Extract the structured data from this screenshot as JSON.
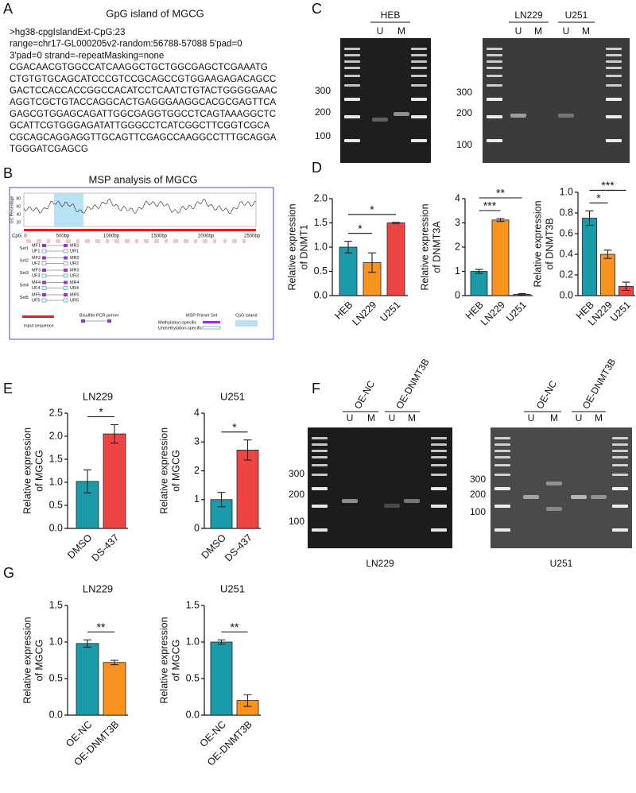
{
  "panel_labels": [
    "A",
    "B",
    "C",
    "D",
    "E",
    "F",
    "G"
  ],
  "sequence": {
    "title": "GpG island of MGCG",
    "lines": [
      ">hg38-cpgIslandExt-CpG:23",
      "range=chr17-GL000205v2-random:56788-57088 5'pad=0",
      "3'pad=0 strand=-repeatMasking=none",
      "CGACAACGTGGCCATCAAGGCTGCTGGCGAGCTCGAAATG",
      "CTGTGTGCAGCATCCCGTCCGCAGCCGTGGAAGAGACAGCC",
      "GACTCCACCACCGGCCACATCCTCAATCTGTACTGGGGGAAC",
      "AGGTCGCTGTACCAGGCACTGAGGGAAGGCACGCGAGTTCA",
      "GAGCGTGGAGCAGATTGGCGAGGTGGCCTCAGTAAAGGCTC",
      "GCATTCGTGGGAGATATTGGGCCTCATCGGCTTCGGTCGCA",
      "CGCAGCAGGAGGTTGCAGTTCGAGCCAAGGCCTTTGCAGGA",
      "TGGGATCGAGCG"
    ]
  },
  "msp": {
    "title": "MSP analysis of MGCG",
    "gc_label": "GC Percentage",
    "gc_ticks": [
      "20",
      "40",
      "60",
      "80"
    ],
    "cpg_label": "CpG",
    "positions": [
      "0",
      "500bp",
      "1000bp",
      "1500bp",
      "2000bp",
      "2500bp"
    ],
    "sets": [
      {
        "name": "Set1",
        "methylated": [
          "MF1",
          "MR1"
        ],
        "unmethylated": [
          "UF1",
          "UR1"
        ]
      },
      {
        "name": "Set2",
        "methylated": [
          "MF2",
          "MR2"
        ],
        "unmethylated": [
          "UF2",
          "UR2"
        ]
      },
      {
        "name": "Set3",
        "methylated": [
          "MF3",
          "MR3"
        ],
        "unmethylated": [
          "UF3",
          "UR3"
        ]
      },
      {
        "name": "Set4",
        "methylated": [
          "MF4",
          "MR4"
        ],
        "unmethylated": [
          "UF4",
          "UR4"
        ]
      },
      {
        "name": "Set5",
        "methylated": [
          "MF5",
          "MR5"
        ],
        "unmethylated": [
          "UF5",
          "UR5"
        ]
      }
    ],
    "legend": {
      "input": "Input sequence",
      "bisulfite": "Bisulfite PCR primer",
      "primer_set": "MSP Primer Set",
      "methylation": "Methylation-specific",
      "unmethylation": "Unmethylation-specific",
      "island": "CpG Island"
    }
  },
  "gels": [
    {
      "groups": [
        {
          "name": "HEB",
          "lanes": [
            "U",
            "M"
          ]
        }
      ],
      "markers": [
        "300",
        "200",
        "100"
      ]
    },
    {
      "groups": [
        {
          "name": "LN229",
          "lanes": [
            "U",
            "M"
          ]
        },
        {
          "name": "U251",
          "lanes": [
            "U",
            "M"
          ]
        }
      ],
      "markers": [
        "300",
        "200",
        "100"
      ]
    },
    {
      "groups": [
        {
          "name": "OE-NC",
          "lanes": [
            "U",
            "M"
          ]
        },
        {
          "name": "OE-DNMT3B",
          "lanes": [
            "U",
            "M"
          ]
        }
      ],
      "markers": [
        "300",
        "200",
        "100"
      ],
      "caption": "LN229"
    },
    {
      "groups": [
        {
          "name": "OE-NC",
          "lanes": [
            "U",
            "M"
          ]
        },
        {
          "name": "OE-DNMT3B",
          "lanes": [
            "U",
            "M"
          ]
        }
      ],
      "markers": [
        "300",
        "200",
        "100"
      ],
      "caption": "U251"
    }
  ],
  "chart_data": [
    {
      "type": "bar",
      "ylabel": [
        "Relative expression",
        "of DNMT1"
      ],
      "categories": [
        "HEB",
        "LN229",
        "U251"
      ],
      "values": [
        1.0,
        0.68,
        1.5
      ],
      "errors": [
        0.12,
        0.2,
        0.01
      ],
      "colors": [
        "#1b9aaa",
        "#f7931e",
        "#ef4444"
      ],
      "ylim": [
        0,
        2
      ],
      "yticks": [
        {
          "value": 0,
          "label": "0.0"
        },
        0.5,
        {
          "value": 1,
          "label": "1.0"
        },
        1.5,
        {
          "value": 2,
          "label": "2.0"
        }
      ],
      "comparisons": [
        {
          "label": "*",
          "between": [
            "HEB",
            "LN229"
          ]
        },
        {
          "label": "*",
          "between": [
            "HEB",
            "U251"
          ]
        }
      ]
    },
    {
      "type": "bar",
      "ylabel": [
        "Relative expression",
        "of DNMT3A"
      ],
      "categories": [
        "HEB",
        "LN229",
        "U251"
      ],
      "values": [
        1.0,
        3.12,
        0.05
      ],
      "errors": [
        0.08,
        0.06,
        0.03
      ],
      "colors": [
        "#1b9aaa",
        "#f7931e",
        "#ef4444"
      ],
      "ylim": [
        0,
        4
      ],
      "yticks": [
        0,
        1,
        2,
        3,
        4
      ],
      "comparisons": [
        {
          "label": "***",
          "between": [
            "HEB",
            "LN229"
          ]
        },
        {
          "label": "**",
          "between": [
            "HEB",
            "U251"
          ]
        }
      ]
    },
    {
      "type": "bar",
      "ylabel": [
        "Relative expression",
        "of DNMT3B"
      ],
      "categories": [
        "HEB",
        "LN229",
        "U251"
      ],
      "values": [
        0.75,
        0.4,
        0.09
      ],
      "errors": [
        0.07,
        0.04,
        0.04
      ],
      "colors": [
        "#1b9aaa",
        "#f7931e",
        "#ef4444"
      ],
      "ylim": [
        0,
        1
      ],
      "yticks": [
        {
          "value": 0,
          "label": "0.0"
        },
        0.2,
        0.4,
        0.6,
        0.8,
        {
          "value": 1,
          "label": "1.0"
        }
      ],
      "comparisons": [
        {
          "label": "*",
          "between": [
            "HEB",
            "LN229"
          ]
        },
        {
          "label": "***",
          "between": [
            "HEB",
            "U251"
          ]
        }
      ]
    },
    {
      "type": "bar",
      "title": "LN229",
      "ylabel": [
        "Relative expression",
        "of MGCG"
      ],
      "categories": [
        "DMSO",
        "DS-437"
      ],
      "values": [
        1.02,
        2.05
      ],
      "errors": [
        0.25,
        0.2
      ],
      "colors": [
        "#1b9aaa",
        "#ef4444"
      ],
      "ylim": [
        0,
        2.5
      ],
      "yticks": [
        {
          "value": 0,
          "label": "0.0"
        },
        0.5,
        {
          "value": 1,
          "label": "1.0"
        },
        1.5,
        {
          "value": 2,
          "label": "2.0"
        },
        2.5
      ],
      "comparisons": [
        {
          "label": "*",
          "between": [
            "DMSO",
            "DS-437"
          ]
        }
      ]
    },
    {
      "type": "bar",
      "title": "U251",
      "ylabel": [
        "Relative expression",
        "of MGCG"
      ],
      "categories": [
        "DMSO",
        "DS-437"
      ],
      "values": [
        1.0,
        2.72
      ],
      "errors": [
        0.25,
        0.35
      ],
      "colors": [
        "#1b9aaa",
        "#ef4444"
      ],
      "ylim": [
        0,
        4
      ],
      "yticks": [
        0,
        1,
        2,
        3,
        4
      ],
      "comparisons": [
        {
          "label": "*",
          "between": [
            "DMSO",
            "DS-437"
          ]
        }
      ]
    },
    {
      "type": "bar",
      "title": "LN229",
      "ylabel": [
        "Relative expression",
        "of MGCG"
      ],
      "categories": [
        "OE-NC",
        "OE-DNMT3B"
      ],
      "values": [
        0.98,
        0.72
      ],
      "errors": [
        0.05,
        0.03
      ],
      "colors": [
        "#1b9aaa",
        "#f7931e"
      ],
      "ylim": [
        0,
        1.5
      ],
      "yticks": [
        {
          "value": 0,
          "label": "0.0"
        },
        0.5,
        {
          "value": 1,
          "label": "1.0"
        },
        1.5
      ],
      "comparisons": [
        {
          "label": "**",
          "between": [
            "OE-NC",
            "OE-DNMT3B"
          ]
        }
      ]
    },
    {
      "type": "bar",
      "title": "U251",
      "ylabel": [
        "Relative expression",
        "of MGCG"
      ],
      "categories": [
        "OE-NC",
        "OE-DNMT3B"
      ],
      "values": [
        1.0,
        0.2
      ],
      "errors": [
        0.03,
        0.08
      ],
      "colors": [
        "#1b9aaa",
        "#f7931e"
      ],
      "ylim": [
        0,
        1.5
      ],
      "yticks": [
        {
          "value": 0,
          "label": "0.0"
        },
        0.5,
        {
          "value": 1,
          "label": "1.0"
        },
        1.5
      ],
      "comparisons": [
        {
          "label": "**",
          "between": [
            "OE-NC",
            "OE-DNMT3B"
          ]
        }
      ]
    }
  ]
}
